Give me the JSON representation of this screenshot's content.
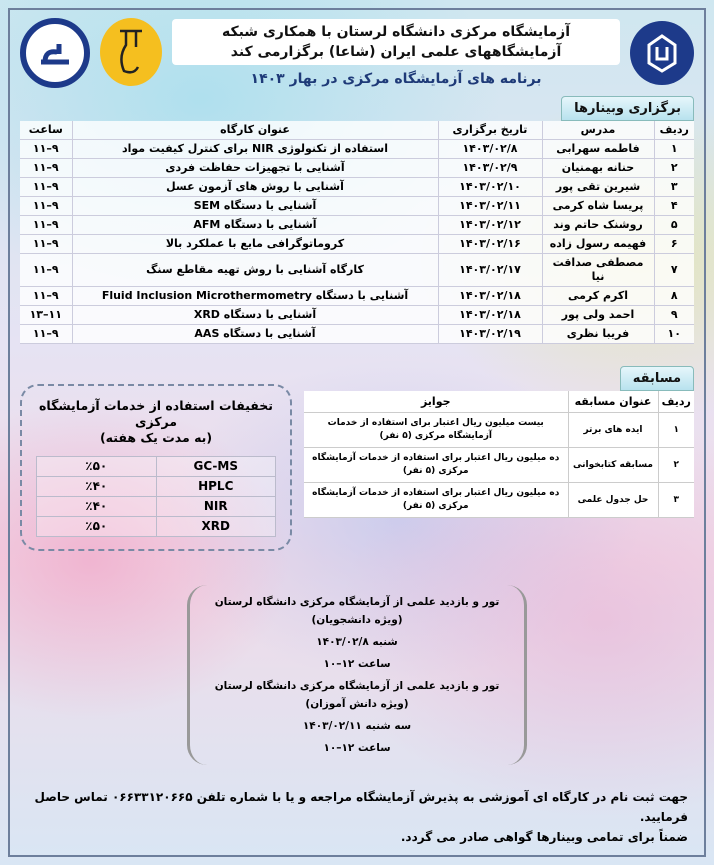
{
  "header": {
    "title_line1": "آزمایشگاه مرکزی دانشگاه لرستان با همکاری شبکه",
    "title_line2": "آزمایشگاههای علمی ایران (شاعا) برگزارمی کند",
    "subtitle": "برنامه های آزمایشگاه مرکزی در بهار ۱۴۰۳"
  },
  "logos": {
    "left": "آزمایشگاه مرکزی دانشگاه لرستان",
    "middle": "شاعا",
    "right": "دانشگاه لرستان"
  },
  "webinars": {
    "heading": "برگزاری وبینارها",
    "columns": [
      "ردیف",
      "مدرس",
      "تاریخ برگزاری",
      "عنوان کارگاه",
      "ساعت"
    ],
    "rows": [
      [
        "۱",
        "فاطمه سهرابی",
        "۱۴۰۳/۰۲/۸",
        "استفاده از تکنولوژی NIR برای کنترل کیفیت مواد",
        "۹–۱۱"
      ],
      [
        "۲",
        "حنانه بهمنیان",
        "۱۴۰۳/۰۲/۹",
        "آشنایی با تجهیزات حفاظت فردی",
        "۹–۱۱"
      ],
      [
        "۳",
        "شیرین تقی پور",
        "۱۴۰۳/۰۲/۱۰",
        "آشنایی با روش های آزمون عسل",
        "۹–۱۱"
      ],
      [
        "۴",
        "پریسا شاه کرمی",
        "۱۴۰۳/۰۲/۱۱",
        "آشنایی با دستگاه SEM",
        "۹–۱۱"
      ],
      [
        "۵",
        "روشنک حاتم وند",
        "۱۴۰۳/۰۲/۱۲",
        "آشنایی با دستگاه AFM",
        "۹–۱۱"
      ],
      [
        "۶",
        "فهیمه رسول زاده",
        "۱۴۰۳/۰۲/۱۶",
        "کروماتوگرافی مایع با عملکرد بالا",
        "۹–۱۱"
      ],
      [
        "۷",
        "مصطفی صداقت نیا",
        "۱۴۰۳/۰۲/۱۷",
        "کارگاه آشنایی با روش تهیه مقاطع سنگ",
        "۹–۱۱"
      ],
      [
        "۸",
        "اکرم کرمی",
        "۱۴۰۳/۰۲/۱۸",
        "آشنایی با دستگاه Fluid Inclusion Microthermometry",
        "۹–۱۱"
      ],
      [
        "۹",
        "احمد ولی پور",
        "۱۴۰۳/۰۲/۱۸",
        "آشنایی با دستگاه XRD",
        "۱۱–۱۳"
      ],
      [
        "۱۰",
        "فریبا نظری",
        "۱۴۰۳/۰۲/۱۹",
        "آشنایی با دستگاه AAS",
        "۹–۱۱"
      ]
    ]
  },
  "contest": {
    "heading": "مسابقه",
    "columns": [
      "ردیف",
      "عنوان مسابقه",
      "جوایز"
    ],
    "rows": [
      [
        "۱",
        "ایده های برتر",
        "بیست میلیون ریال اعتبار برای استفاده از خدمات آزمایشگاه مرکزی (۵ نفر)"
      ],
      [
        "۲",
        "مسابقه کتابخوانی",
        "ده میلیون ریال اعتبار برای استفاده از خدمات آزمایشگاه مرکزی (۵ نفر)"
      ],
      [
        "۳",
        "حل جدول علمی",
        "ده میلیون ریال اعتبار برای استفاده از خدمات آزمایشگاه مرکزی (۵ نفر)"
      ]
    ]
  },
  "discounts": {
    "title": "تخفیفات استفاده از خدمات آزمایشگاه مرکزی",
    "subtitle": "(به مدت یک هفته)",
    "rows": [
      [
        "GC-MS",
        "٪۵۰"
      ],
      [
        "HPLC",
        "٪۴۰"
      ],
      [
        "NIR",
        "٪۴۰"
      ],
      [
        "XRD",
        "٪۵۰"
      ]
    ]
  },
  "tour": {
    "lines": [
      "تور و بازدید علمی از آزمایشگاه مرکزی دانشگاه لرستان (ویژه دانشجویان)",
      "شنبه ۱۴۰۳/۰۲/۸",
      "ساعت ۱۲–۱۰",
      "تور و بازدید علمی از آزمایشگاه مرکزی دانشگاه لرستان (ویژه دانش آموزان)",
      "سه شنبه ۱۴۰۳/۰۲/۱۱",
      "ساعت ۱۲–۱۰"
    ]
  },
  "footer": {
    "line1": "جهت ثبت نام در کارگاه ای آموزشی به پذیرش آزمایشگاه مراجعه و یا با شماره تلفن ۰۶۶۳۳۱۲۰۶۶۵ تماس حاصل فرمایید.",
    "line2": "ضمناً برای تمامی وبینارها گواهی صادر می گردد."
  },
  "colors": {
    "title_blue": "#1e3a78",
    "logo_navy": "#1d3a8a",
    "logo_gold": "#f5bf1f"
  }
}
